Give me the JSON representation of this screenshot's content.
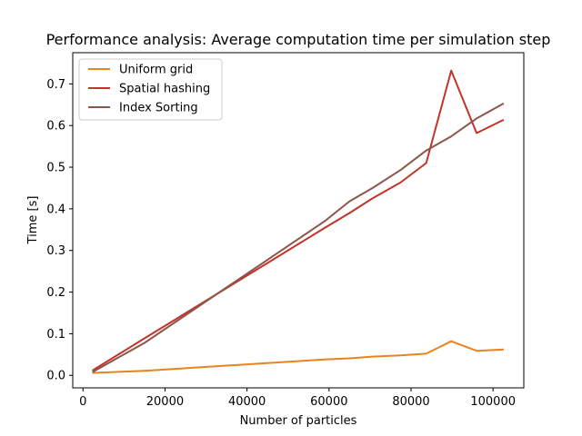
{
  "chart_data": {
    "type": "line",
    "title": "Performance analysis: Average computation time per simulation step",
    "xlabel": "Number of particles",
    "ylabel": "Time [s]",
    "xlim": [
      -2500,
      107500
    ],
    "ylim": [
      -0.03,
      0.775
    ],
    "xticks": [
      0,
      20000,
      40000,
      60000,
      80000,
      100000
    ],
    "yticks": [
      0.0,
      0.1,
      0.2,
      0.3,
      0.4,
      0.5,
      0.6,
      0.7
    ],
    "grid": false,
    "legend_position": "top-left",
    "series": [
      {
        "name": "Uniform grid",
        "color": "#e8841d",
        "x": [
          2500,
          15000,
          58900,
          65000,
          70600,
          77400,
          83700,
          89800,
          96000,
          102400
        ],
        "y": [
          0.006,
          0.011,
          0.038,
          0.041,
          0.045,
          0.048,
          0.052,
          0.082,
          0.059,
          0.062
        ]
      },
      {
        "name": "Spatial hashing",
        "color": "#c3332a",
        "x": [
          2500,
          15000,
          58900,
          65000,
          70600,
          77400,
          83700,
          89800,
          96000,
          102400
        ],
        "y": [
          0.013,
          0.089,
          0.354,
          0.39,
          0.425,
          0.463,
          0.51,
          0.732,
          0.582,
          0.613
        ]
      },
      {
        "name": "Index Sorting",
        "color": "#8c564b",
        "x": [
          2500,
          15000,
          58900,
          65000,
          70600,
          77400,
          83700,
          89800,
          96000,
          102400
        ],
        "y": [
          0.009,
          0.078,
          0.37,
          0.418,
          0.45,
          0.493,
          0.54,
          0.574,
          0.617,
          0.652
        ]
      }
    ]
  }
}
